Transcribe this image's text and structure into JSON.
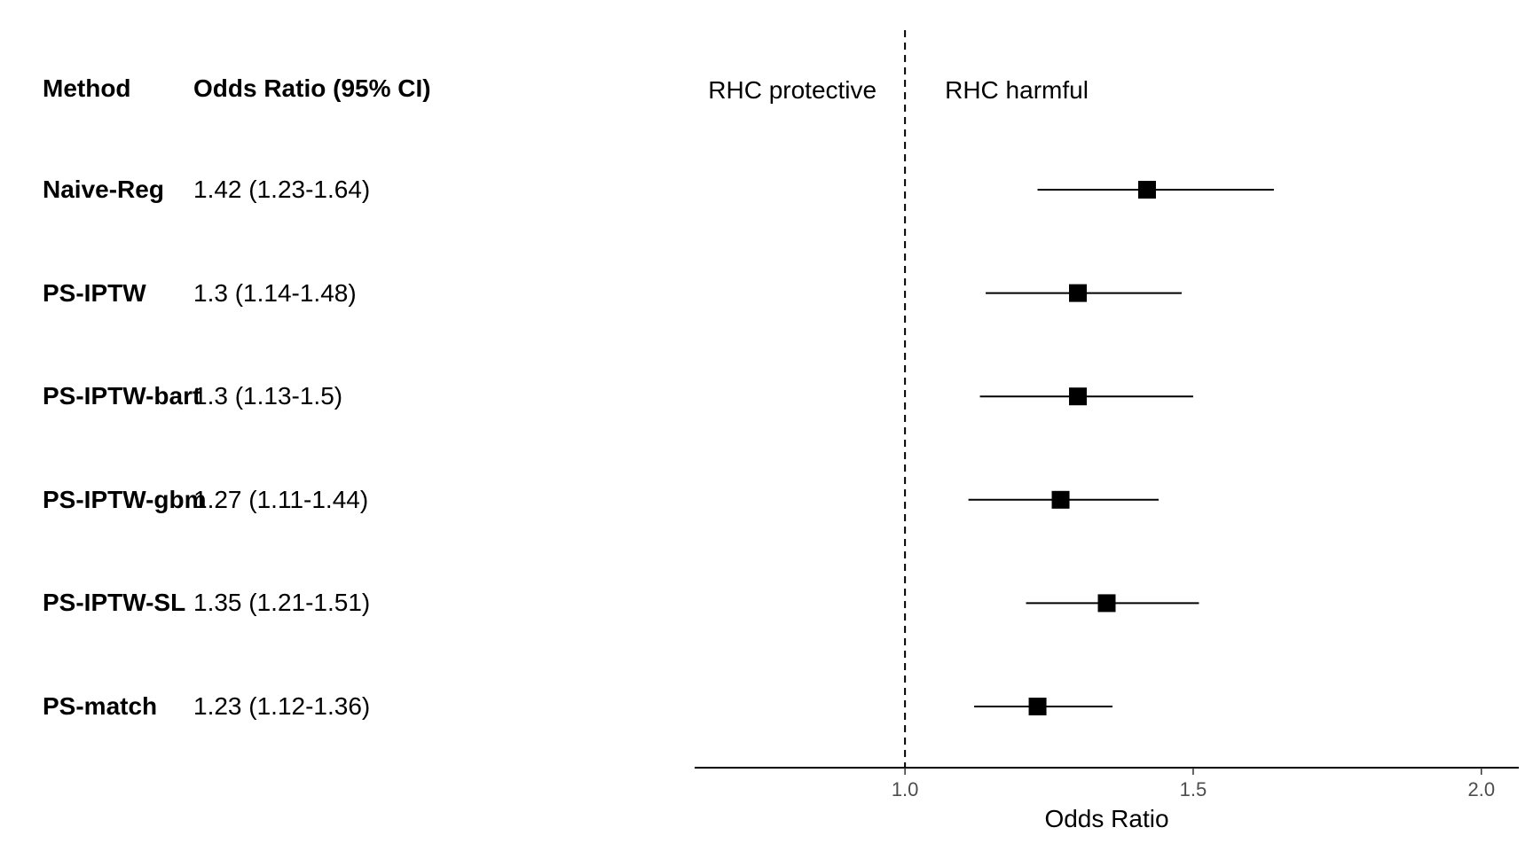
{
  "table": {
    "method_header": "Method",
    "or_header": "Odds Ratio (95% CI)"
  },
  "chart_data": {
    "type": "forest",
    "xlabel": "Odds Ratio",
    "xticks": [
      1.0,
      1.5,
      2.0
    ],
    "xtick_labels": [
      "1.0",
      "1.5",
      "2.0"
    ],
    "xlim": [
      0.635,
      2.065
    ],
    "reference_line": 1.0,
    "annotations": {
      "left": "RHC protective",
      "right": "RHC harmful"
    },
    "rows": [
      {
        "method": "Naive-Reg",
        "or": 1.42,
        "lower": 1.23,
        "upper": 1.64,
        "label": "1.42 (1.23-1.64)"
      },
      {
        "method": "PS-IPTW",
        "or": 1.3,
        "lower": 1.14,
        "upper": 1.48,
        "label": "1.3 (1.14-1.48)"
      },
      {
        "method": "PS-IPTW-bart",
        "or": 1.3,
        "lower": 1.13,
        "upper": 1.5,
        "label": "1.3 (1.13-1.5)"
      },
      {
        "method": "PS-IPTW-gbm",
        "or": 1.27,
        "lower": 1.11,
        "upper": 1.44,
        "label": "1.27 (1.11-1.44)"
      },
      {
        "method": "PS-IPTW-SL",
        "or": 1.35,
        "lower": 1.21,
        "upper": 1.51,
        "label": "1.35 (1.21-1.51)"
      },
      {
        "method": "PS-match",
        "or": 1.23,
        "lower": 1.12,
        "upper": 1.36,
        "label": "1.23 (1.12-1.36)"
      }
    ],
    "colors": {
      "marker": "#000000",
      "line": "#000000",
      "axis": "#000000",
      "tick_text": "#4d4d4d"
    }
  }
}
